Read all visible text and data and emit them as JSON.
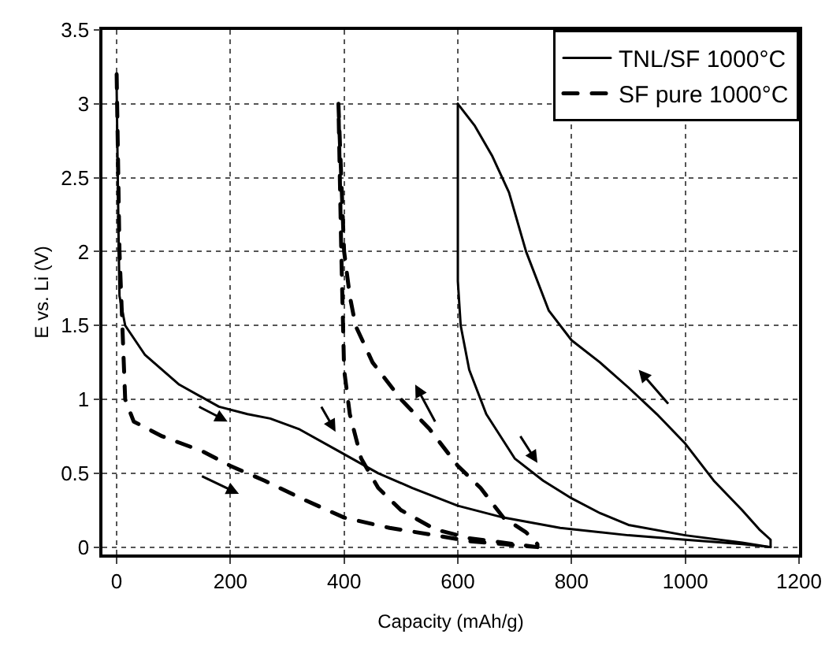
{
  "chart_data": {
    "type": "line",
    "xlabel": "Capacity (mAh/g)",
    "ylabel": "E vs. Li (V)",
    "xlim": [
      -25,
      1200
    ],
    "ylim": [
      -0.05,
      3.5
    ],
    "xticks": [
      0,
      200,
      400,
      600,
      800,
      1000,
      1200
    ],
    "yticks": [
      0,
      0.5,
      1,
      1.5,
      2,
      2.5,
      3,
      3.5
    ],
    "grid": true,
    "legend": "top right",
    "marker": "none",
    "series": [
      {
        "name": "TNL/SF 1000°C",
        "color": "#000000",
        "line_style": "solid",
        "x": [
          0,
          3,
          5,
          15,
          50,
          110,
          180,
          230,
          270,
          320,
          390,
          460,
          520,
          600,
          680,
          780,
          900,
          1000,
          1100,
          1150,
          1150,
          1130,
          1100,
          1050,
          1000,
          950,
          900,
          850,
          800,
          760,
          720,
          690,
          660,
          630,
          600,
          null,
          600,
          600,
          605,
          620,
          650,
          700,
          750,
          800,
          850,
          900,
          1000,
          1100,
          1150
        ],
        "values": [
          3.1,
          2.2,
          1.7,
          1.5,
          1.3,
          1.1,
          0.95,
          0.9,
          0.87,
          0.8,
          0.65,
          0.5,
          0.4,
          0.28,
          0.2,
          0.13,
          0.08,
          0.05,
          0.02,
          0,
          0.05,
          0.12,
          0.25,
          0.45,
          0.7,
          0.9,
          1.08,
          1.25,
          1.4,
          1.6,
          2.0,
          2.4,
          2.65,
          2.85,
          3.0,
          null,
          3.0,
          1.8,
          1.5,
          1.2,
          0.9,
          0.6,
          0.45,
          0.33,
          0.23,
          0.15,
          0.08,
          0.03,
          0
        ]
      },
      {
        "name": "SF pure 1000°C",
        "color": "#000000",
        "line_style": "dashed",
        "x": [
          0,
          5,
          10,
          15,
          30,
          80,
          150,
          200,
          260,
          330,
          400,
          480,
          560,
          620,
          680,
          740,
          740,
          720,
          680,
          640,
          600,
          550,
          500,
          450,
          420,
          410,
          400,
          395,
          390,
          390,
          395,
          400,
          410,
          430,
          460,
          500,
          560,
          620,
          680,
          740
        ],
        "values": [
          3.2,
          2.0,
          1.5,
          1.0,
          0.85,
          0.75,
          0.65,
          0.55,
          0.45,
          0.32,
          0.2,
          0.13,
          0.08,
          0.04,
          0.02,
          0,
          0.02,
          0.1,
          0.2,
          0.4,
          0.55,
          0.8,
          1.0,
          1.25,
          1.5,
          1.7,
          2.0,
          2.5,
          3.0,
          3.0,
          2.0,
          1.2,
          0.9,
          0.6,
          0.4,
          0.25,
          0.12,
          0.06,
          0.03,
          0
        ]
      }
    ]
  }
}
